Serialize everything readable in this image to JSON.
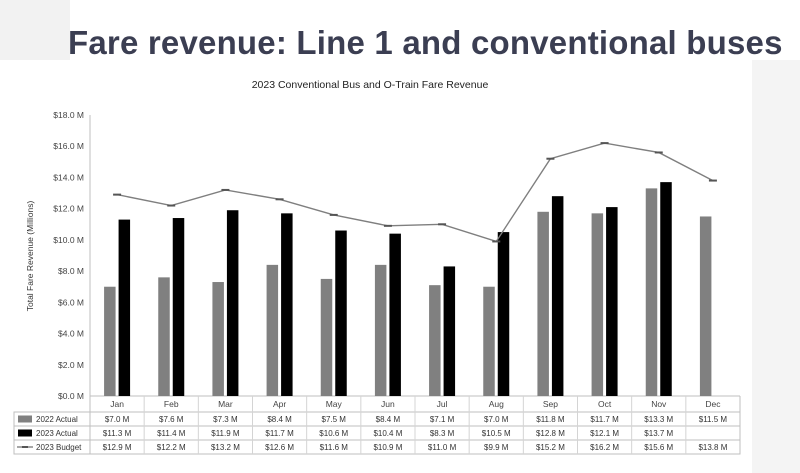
{
  "slide": {
    "title": "Fare revenue: Line 1 and conventional buses"
  },
  "chart_data": {
    "type": "bar",
    "title": "2023 Conventional Bus and O-Train Fare Revenue",
    "ylabel": "Total Fare Revenue (Millions)",
    "xlabel": "",
    "ylim": [
      0,
      18
    ],
    "y_ticks": [
      0,
      2,
      4,
      6,
      8,
      10,
      12,
      14,
      16,
      18
    ],
    "y_tick_labels": [
      "$0.0 M",
      "$2.0 M",
      "$4.0 M",
      "$6.0 M",
      "$8.0 M",
      "$10.0 M",
      "$12.0 M",
      "$14.0 M",
      "$16.0 M",
      "$18.0 M"
    ],
    "grid": false,
    "legend": "data-table-below",
    "categories": [
      "Jan",
      "Feb",
      "Mar",
      "Apr",
      "May",
      "Jun",
      "Jul",
      "Aug",
      "Sep",
      "Oct",
      "Nov",
      "Dec"
    ],
    "series": [
      {
        "name": "2022 Actual",
        "type": "bar",
        "color": "#808080",
        "values": [
          7.0,
          7.6,
          7.3,
          8.4,
          7.5,
          8.4,
          7.1,
          7.0,
          11.8,
          11.7,
          13.3,
          11.5
        ],
        "labels": [
          "$7.0 M",
          "$7.6 M",
          "$7.3 M",
          "$8.4 M",
          "$7.5 M",
          "$8.4 M",
          "$7.1 M",
          "$7.0 M",
          "$11.8 M",
          "$11.7 M",
          "$13.3 M",
          "$11.5 M"
        ]
      },
      {
        "name": "2023 Actual",
        "type": "bar",
        "color": "#000000",
        "values": [
          11.3,
          11.4,
          11.9,
          11.7,
          10.6,
          10.4,
          8.3,
          10.5,
          12.8,
          12.1,
          13.7,
          null
        ],
        "labels": [
          "$11.3 M",
          "$11.4 M",
          "$11.9 M",
          "$11.7 M",
          "$10.6 M",
          "$10.4 M",
          "$8.3 M",
          "$10.5 M",
          "$12.8 M",
          "$12.1 M",
          "$13.7 M",
          ""
        ]
      },
      {
        "name": "2023 Budget",
        "type": "line",
        "color": "#7f7f7f",
        "values": [
          12.9,
          12.2,
          13.2,
          12.6,
          11.6,
          10.9,
          11.0,
          9.9,
          15.2,
          16.2,
          15.6,
          13.8
        ],
        "labels": [
          "$12.9 M",
          "$12.2 M",
          "$13.2 M",
          "$12.6 M",
          "$11.6 M",
          "$10.9 M",
          "$11.0 M",
          "$9.9 M",
          "$15.2 M",
          "$16.2 M",
          "$15.6 M",
          "$13.8 M"
        ]
      }
    ]
  }
}
